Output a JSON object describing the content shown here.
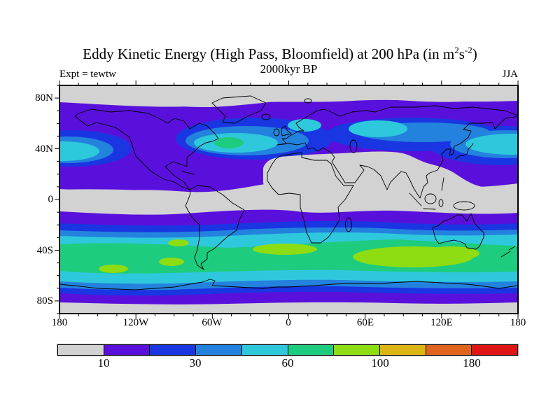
{
  "header": {
    "title_prefix": "Eddy Kinetic Energy (High Pass, Bloomfield) at 200 hPa (in m",
    "title_sup1": "2",
    "title_mid": "s",
    "title_sup2": "-2",
    "title_suffix": ")",
    "subtitle": "2000kyr BP",
    "experiment_label": "Expt = tewtw",
    "season_label": "JJA"
  },
  "map": {
    "x_ticks": [
      "180",
      "120W",
      "60W",
      "0",
      "60E",
      "120E",
      "180"
    ],
    "y_ticks": [
      "80N",
      "40N",
      "0",
      "40S",
      "80S"
    ]
  },
  "colorbar": {
    "labels": [
      "10",
      "30",
      "60",
      "100",
      "180"
    ],
    "colors": [
      "#d2d2d2",
      "#5a10dc",
      "#1a35e2",
      "#2382dd",
      "#2ec8dd",
      "#1dcc7e",
      "#8edc12",
      "#dcb414",
      "#e0641e",
      "#e01414"
    ]
  },
  "chart_data": {
    "type": "heatmap",
    "subtype": "filled-contour-world-map",
    "title": "Eddy Kinetic Energy (High Pass, Bloomfield) at 200 hPa (in m2 s-2)",
    "subtitle": "2000kyr BP",
    "experiment": "tewtw",
    "season": "JJA",
    "variable": "Eddy Kinetic Energy (High Pass, Bloomfield)",
    "pressure_level": "200 hPa",
    "units": "m2 s-2",
    "lon_range": [
      -180,
      180
    ],
    "lat_range": [
      -90,
      90
    ],
    "x_tick_labels": [
      "180",
      "120W",
      "60W",
      "0",
      "60E",
      "120E",
      "180"
    ],
    "y_tick_labels": [
      "80N",
      "40N",
      "0",
      "40S",
      "80S"
    ],
    "minor_tick_interval_lon_deg": 15,
    "minor_tick_interval_lat_deg": 10,
    "labeled_contour_levels": [
      10,
      30,
      60,
      100,
      180
    ],
    "n_color_bands": 10,
    "band_colors": [
      "#d2d2d2",
      "#5a10dc",
      "#1a35e2",
      "#2382dd",
      "#2ec8dd",
      "#1dcc7e",
      "#8edc12",
      "#dcb414",
      "#e0641e",
      "#e01414"
    ],
    "legend_position": "bottom",
    "grid": false,
    "approx_zonal_mean": [
      {
        "lat": "85N",
        "value": 8
      },
      {
        "lat": "65N",
        "value": 15
      },
      {
        "lat": "45N",
        "value": 40
      },
      {
        "lat": "25N",
        "value": 12
      },
      {
        "lat": "0",
        "value": 6
      },
      {
        "lat": "15S",
        "value": 15
      },
      {
        "lat": "30S",
        "value": 50
      },
      {
        "lat": "45S",
        "value": 95
      },
      {
        "lat": "60S",
        "value": 50
      },
      {
        "lat": "75S",
        "value": 15
      },
      {
        "lat": "87S",
        "value": 8
      }
    ],
    "features": [
      "Arctic poleward of ~75N below 10 (gray)",
      "NH Pacific storm track ~35-55N with core 45-60 (cyan) straddling the dateline",
      "NH Atlantic storm track ~40-55N with small 60-80 (green) core near 50W, 47N",
      "Central Asia secondary maximum 45-60 near 45-90E, 50-60N",
      "Subtropical Africa / South Asia and deep tropics below 10 (gray)",
      "SH winter circumpolar storm track ~33-57S at 60-100 (green) with 100+ (yellow-green) maxima over the South Indian Ocean 20-135E and patches in the SE Pacific",
      "Antarctic coast ring 10-45 (purple/blue), interior poleward of ~80S below 10 (gray)"
    ]
  }
}
